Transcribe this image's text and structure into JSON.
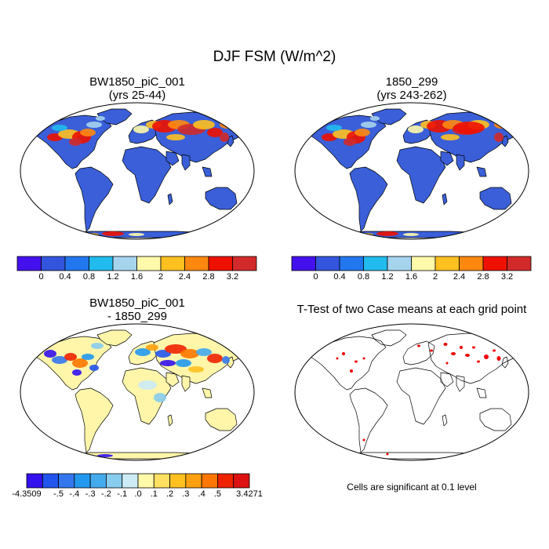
{
  "title": "DJF FSM (W/m^2)",
  "panels": {
    "p1": {
      "title_line1": "BW1850_piC_001",
      "title_line2": "(yrs 25-44)"
    },
    "p2": {
      "title_line1": "1850_299",
      "title_line2": "(yrs 243-262)"
    },
    "p3": {
      "title_line1": "BW1850_piC_001",
      "title_line2": "- 1850_299"
    },
    "p4": {
      "title_line1": "T-Test of two Case means at each grid point"
    }
  },
  "colorbar_abs": {
    "labels": [
      "0",
      "0.4",
      "0.8",
      "1.2",
      "1.6",
      "2",
      "2.4",
      "2.8",
      "3.2"
    ],
    "colors": [
      "#4411ee",
      "#3355dd",
      "#2277ee",
      "#22bbee",
      "#a6d4ee",
      "#fff9aa",
      "#ffc020",
      "#ff8810",
      "#ee1100",
      "#d22a2a"
    ]
  },
  "colorbar_diff": {
    "labels": [
      "-4.3509",
      "-.5",
      "-.4",
      "-.3",
      "-.2",
      "-.1",
      ".0",
      ".1",
      ".2",
      ".3",
      ".4",
      ".5",
      "3.4271"
    ],
    "colors": [
      "#3311ee",
      "#2255ee",
      "#3377ee",
      "#2299ee",
      "#44aaee",
      "#88ccee",
      "#ccebf5",
      "#fff9aa",
      "#ffe060",
      "#ffc020",
      "#ffa010",
      "#ff7700",
      "#ee2200",
      "#dd1111"
    ]
  },
  "significance_note": "Cells are significant at 0.1 level",
  "map_colors": {
    "ocean": "#ffffff",
    "land_base_abs": "#3a5fd8",
    "land_base_diff": "#fff6aa",
    "coast": "#000000",
    "significant": "#ee0000"
  }
}
